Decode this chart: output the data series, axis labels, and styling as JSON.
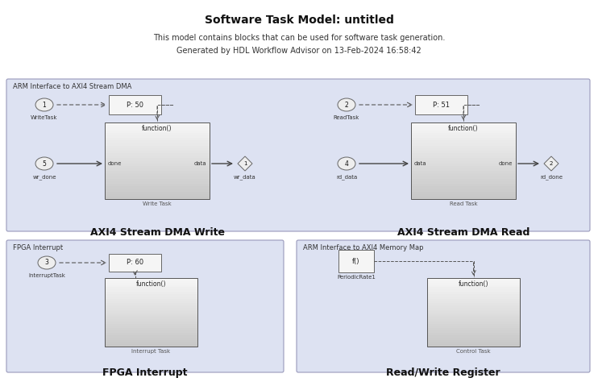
{
  "title": "Software Task Model: untitled",
  "subtitle1": "This model contains blocks that can be used for software task generation.",
  "subtitle2": "Generated by HDL Workflow Advisor on 13-Feb-2024 16:58:42",
  "bg_color": "#ffffff",
  "panel_bg": "#dde2f2",
  "panel_border": "#9999bb",
  "top_panel_label": "ARM Interface to AXI4 Stream DMA",
  "bot_left_label": "FPGA Interrupt",
  "bot_right_label": "ARM Interface to AXI4 Memory Map",
  "dma_write_label": "AXI4 Stream DMA Write",
  "dma_read_label": "AXI4 Stream DMA Read",
  "fpga_int_label": "FPGA Interrupt",
  "rw_reg_label": "Read/Write Register"
}
